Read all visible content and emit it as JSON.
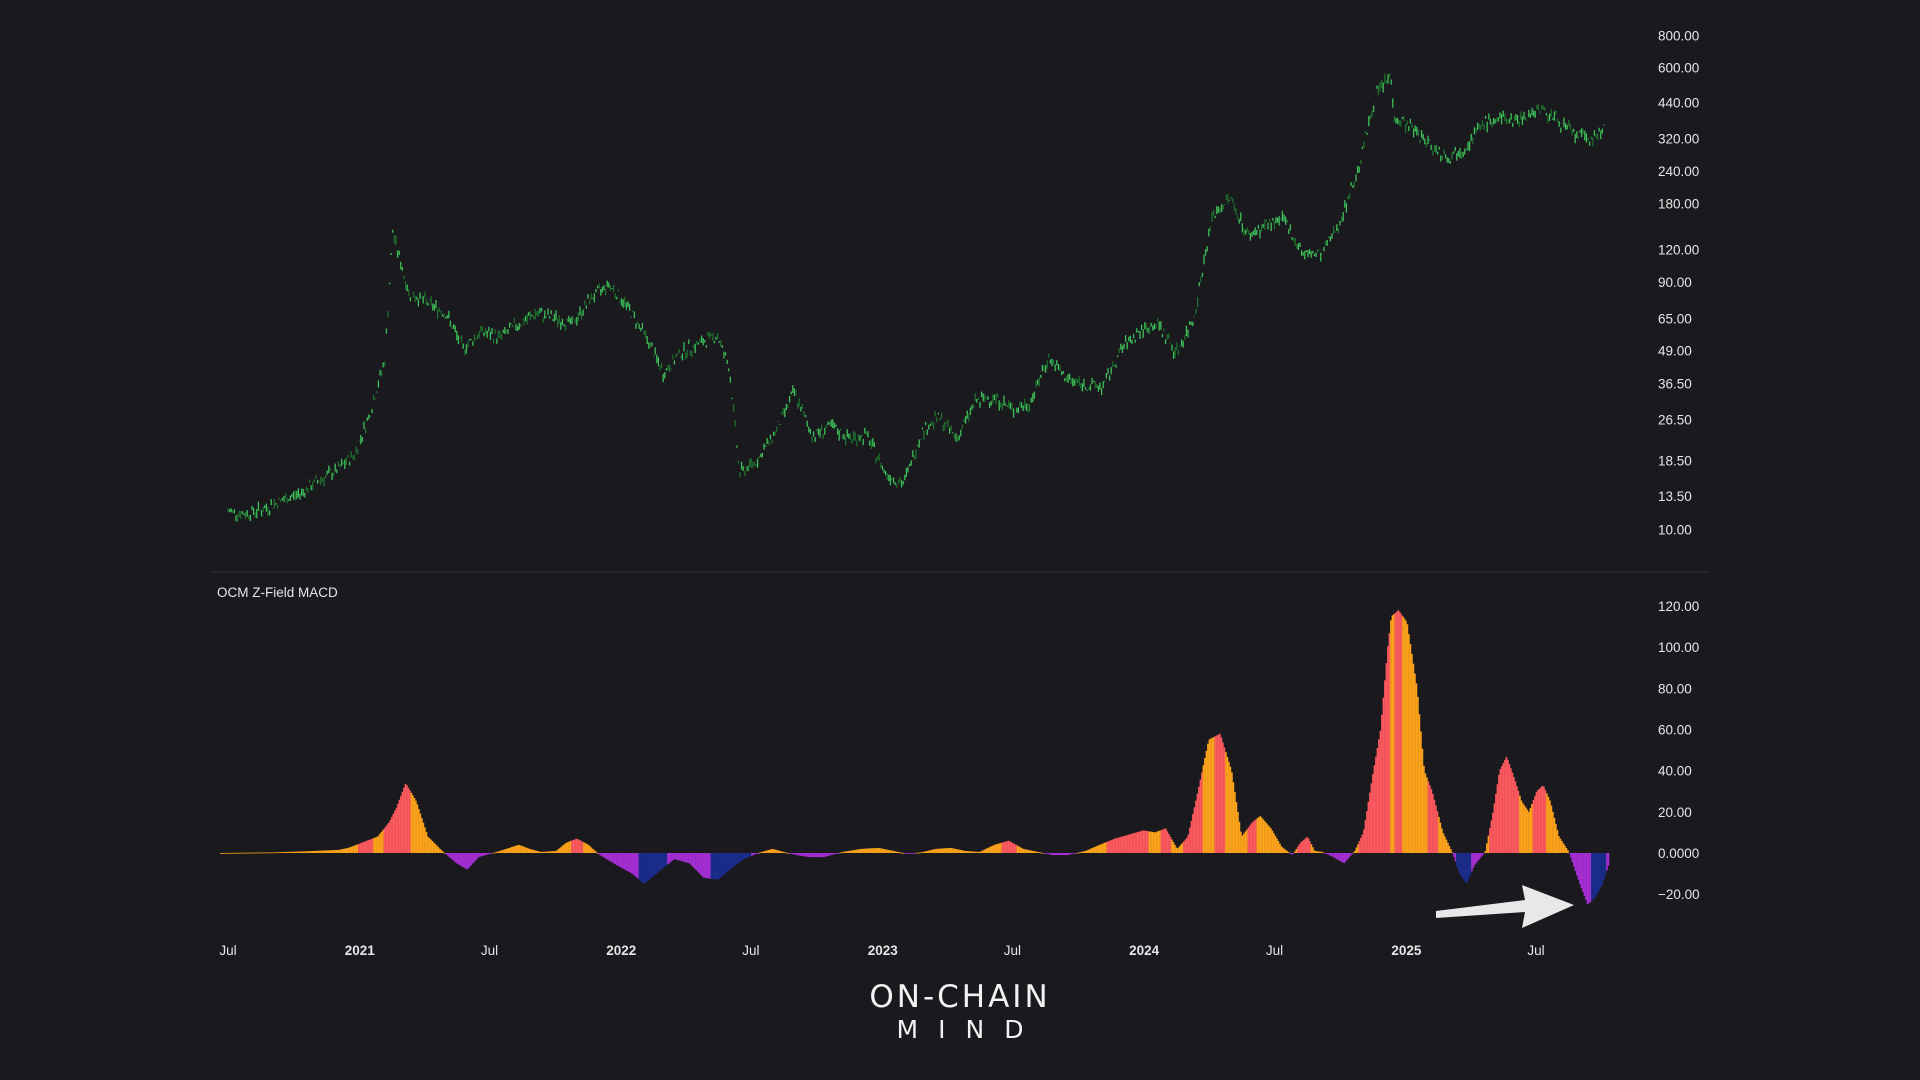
{
  "colors": {
    "background": "#19191e",
    "price_up": "#3fbf5a",
    "price_down": "#1f6e2d",
    "hist_pink": "#ff5a5f",
    "hist_orange": "#ffa51a",
    "hist_purple": "#a72fd6",
    "hist_navy": "#1a2d8c",
    "divider": "#2e2e36",
    "arrow": "#e8e8e8"
  },
  "chart_data": [
    {
      "type": "line",
      "name": "price-pane",
      "scale": "log",
      "ylim": [
        8.5,
        900
      ],
      "y_ticks": [
        "800.00",
        "600.00",
        "440.00",
        "320.00",
        "240.00",
        "180.00",
        "120.00",
        "90.00",
        "65.00",
        "49.00",
        "36.50",
        "26.50",
        "18.50",
        "13.50",
        "10.00"
      ],
      "x": [
        "2020-07-01",
        "2020-07-25",
        "2020-08-20",
        "2020-09-15",
        "2020-10-10",
        "2020-11-05",
        "2020-12-01",
        "2020-12-25",
        "2021-01-15",
        "2021-02-05",
        "2021-02-16",
        "2021-03-10",
        "2021-04-05",
        "2021-05-01",
        "2021-05-25",
        "2021-06-20",
        "2021-07-15",
        "2021-08-10",
        "2021-09-05",
        "2021-10-01",
        "2021-10-25",
        "2021-11-20",
        "2021-12-15",
        "2022-01-10",
        "2022-02-05",
        "2022-03-01",
        "2022-03-25",
        "2022-04-20",
        "2022-05-15",
        "2022-06-01",
        "2022-06-15",
        "2022-07-10",
        "2022-08-05",
        "2022-08-30",
        "2022-09-25",
        "2022-10-20",
        "2022-11-15",
        "2022-12-10",
        "2023-01-05",
        "2023-01-30",
        "2023-02-25",
        "2023-03-20",
        "2023-04-15",
        "2023-05-10",
        "2023-06-05",
        "2023-07-01",
        "2023-07-25",
        "2023-08-20",
        "2023-09-15",
        "2023-10-10",
        "2023-11-05",
        "2023-12-01",
        "2023-12-25",
        "2024-01-20",
        "2024-02-15",
        "2024-03-10",
        "2024-04-05",
        "2024-04-30",
        "2024-05-25",
        "2024-06-20",
        "2024-07-15",
        "2024-08-10",
        "2024-09-05",
        "2024-10-01",
        "2024-10-25",
        "2024-11-20",
        "2024-12-10",
        "2024-12-15",
        "2025-01-10",
        "2025-02-05",
        "2025-03-01",
        "2025-03-25",
        "2025-04-20",
        "2025-05-15",
        "2025-06-10",
        "2025-07-05",
        "2025-07-30",
        "2025-08-25",
        "2025-09-20",
        "2025-10-05"
      ],
      "values": [
        11.8,
        11.5,
        12.0,
        13.0,
        13.8,
        15.5,
        17.0,
        19.5,
        28.0,
        45.0,
        140.0,
        82.0,
        75.0,
        68.0,
        50.0,
        58.0,
        55.0,
        62.0,
        68.0,
        65.0,
        62.0,
        78.0,
        88.0,
        72.0,
        55.0,
        40.0,
        48.0,
        52.0,
        56.0,
        42.0,
        16.5,
        18.5,
        24.0,
        34.0,
        23.0,
        25.0,
        22.5,
        23.0,
        16.5,
        15.0,
        24.0,
        27.0,
        22.5,
        31.0,
        32.5,
        29.0,
        30.5,
        46.0,
        38.0,
        36.0,
        35.5,
        50.0,
        58.0,
        62.0,
        48.0,
        65.0,
        160.0,
        190.0,
        135.0,
        150.0,
        155.0,
        115.0,
        115.0,
        155.0,
        240.0,
        480.0,
        560.0,
        390.0,
        350.0,
        300.0,
        270.0,
        300.0,
        370.0,
        380.0,
        380.0,
        420.0,
        380.0,
        330.0,
        320.0,
        360.0
      ]
    },
    {
      "type": "bar",
      "name": "OCM Z-Field MACD",
      "title": "OCM Z-Field MACD",
      "ylim": [
        -27,
        123
      ],
      "y_ticks": [
        "120.00",
        "100.00",
        "80.00",
        "60.00",
        "40.00",
        "20.00",
        "0.0000",
        "−20.00"
      ],
      "x": [
        "2020-06-20",
        "2020-09-01",
        "2020-10-15",
        "2020-12-01",
        "2020-12-15",
        "2021-01-10",
        "2021-01-25",
        "2021-02-10",
        "2021-02-20",
        "2021-03-05",
        "2021-03-20",
        "2021-04-05",
        "2021-04-25",
        "2021-05-15",
        "2021-05-30",
        "2021-06-15",
        "2021-07-10",
        "2021-08-10",
        "2021-08-25",
        "2021-09-10",
        "2021-10-01",
        "2021-10-15",
        "2021-10-30",
        "2021-11-15",
        "2021-12-01",
        "2021-12-25",
        "2022-01-15",
        "2022-02-01",
        "2022-02-25",
        "2022-03-15",
        "2022-04-05",
        "2022-04-25",
        "2022-05-15",
        "2022-06-01",
        "2022-06-20",
        "2022-07-10",
        "2022-07-30",
        "2022-08-15",
        "2022-09-01",
        "2022-09-20",
        "2022-10-10",
        "2022-11-05",
        "2022-12-01",
        "2022-12-25",
        "2023-01-15",
        "2023-02-05",
        "2023-02-25",
        "2023-03-15",
        "2023-04-05",
        "2023-04-25",
        "2023-05-15",
        "2023-06-05",
        "2023-06-25",
        "2023-07-15",
        "2023-08-05",
        "2023-08-25",
        "2023-09-15",
        "2023-10-10",
        "2023-10-30",
        "2023-11-20",
        "2023-12-10",
        "2023-12-30",
        "2024-01-15",
        "2024-01-30",
        "2024-02-15",
        "2024-03-01",
        "2024-03-15",
        "2024-03-30",
        "2024-04-15",
        "2024-05-01",
        "2024-05-15",
        "2024-05-30",
        "2024-06-10",
        "2024-06-25",
        "2024-07-10",
        "2024-07-25",
        "2024-08-05",
        "2024-08-15",
        "2024-08-25",
        "2024-09-05",
        "2024-09-20",
        "2024-10-05",
        "2024-10-20",
        "2024-11-01",
        "2024-11-15",
        "2024-11-25",
        "2024-12-05",
        "2024-12-10",
        "2024-12-20",
        "2025-01-01",
        "2025-01-15",
        "2025-01-25",
        "2025-02-05",
        "2025-02-20",
        "2025-03-05",
        "2025-03-15",
        "2025-03-25",
        "2025-04-05",
        "2025-04-20",
        "2025-05-01",
        "2025-05-10",
        "2025-05-20",
        "2025-06-01",
        "2025-06-10",
        "2025-06-20",
        "2025-07-01",
        "2025-07-10",
        "2025-07-20",
        "2025-08-01",
        "2025-08-15",
        "2025-08-30",
        "2025-09-10",
        "2025-09-20",
        "2025-10-01",
        "2025-10-10"
      ],
      "values": [
        0,
        0.3,
        0.8,
        1.5,
        2.5,
        6,
        8,
        15,
        22,
        34,
        25,
        8,
        1,
        -5,
        -8,
        -2,
        0.5,
        4,
        2,
        0.5,
        1,
        5,
        7,
        4,
        -1,
        -6,
        -10,
        -15,
        -8,
        -3,
        -5,
        -12,
        -13,
        -8,
        -3,
        0,
        2,
        0.5,
        -1,
        -2,
        -2,
        0.5,
        2,
        2.5,
        1,
        -0.5,
        0.5,
        2,
        2.5,
        1,
        0.5,
        4,
        6,
        2,
        0.5,
        -1,
        -1,
        1,
        4,
        7,
        9,
        11,
        10,
        12,
        2,
        8,
        30,
        55,
        58,
        40,
        8,
        15,
        18,
        12,
        3,
        -1,
        5,
        8,
        1,
        0.5,
        -2,
        -5,
        1,
        10,
        40,
        60,
        100,
        115,
        118,
        112,
        80,
        40,
        30,
        10,
        0.5,
        -10,
        -15,
        -6,
        0.5,
        20,
        40,
        47,
        35,
        25,
        20,
        30,
        33,
        25,
        8,
        0.5,
        -15,
        -25,
        -22,
        -15,
        -5
      ],
      "colors": [
        "orange",
        "orange",
        "orange",
        "orange",
        "orange",
        "pink",
        "orange",
        "pink",
        "pink",
        "pink",
        "orange",
        "orange",
        "orange",
        "purple",
        "purple",
        "purple",
        "orange",
        "orange",
        "orange",
        "orange",
        "orange",
        "orange",
        "pink",
        "orange",
        "purple",
        "purple",
        "purple",
        "navy",
        "navy",
        "purple",
        "purple",
        "purple",
        "navy",
        "navy",
        "navy",
        "orange",
        "orange",
        "orange",
        "purple",
        "purple",
        "purple",
        "orange",
        "orange",
        "orange",
        "orange",
        "purple",
        "orange",
        "orange",
        "orange",
        "orange",
        "orange",
        "orange",
        "pink",
        "orange",
        "orange",
        "purple",
        "purple",
        "orange",
        "orange",
        "pink",
        "pink",
        "pink",
        "orange",
        "pink",
        "purple",
        "pink",
        "pink",
        "orange",
        "pink",
        "orange",
        "orange",
        "pink",
        "orange",
        "orange",
        "orange",
        "purple",
        "pink",
        "pink",
        "orange",
        "orange",
        "purple",
        "purple",
        "orange",
        "pink",
        "pink",
        "pink",
        "pink",
        "orange",
        "pink",
        "orange",
        "orange",
        "orange",
        "pink",
        "orange",
        "orange",
        "navy",
        "navy",
        "purple",
        "orange",
        "pink",
        "pink",
        "pink",
        "pink",
        "orange",
        "orange",
        "pink",
        "pink",
        "orange",
        "orange",
        "orange",
        "purple",
        "purple",
        "navy",
        "navy",
        "purple"
      ]
    }
  ],
  "x_axis": {
    "labels": [
      {
        "text": "Jul",
        "date": "2020-07-01",
        "major": false
      },
      {
        "text": "2021",
        "date": "2021-01-01",
        "major": true
      },
      {
        "text": "Jul",
        "date": "2021-07-01",
        "major": false
      },
      {
        "text": "2022",
        "date": "2022-01-01",
        "major": true
      },
      {
        "text": "Jul",
        "date": "2022-07-01",
        "major": false
      },
      {
        "text": "2023",
        "date": "2023-01-01",
        "major": true
      },
      {
        "text": "Jul",
        "date": "2023-07-01",
        "major": false
      },
      {
        "text": "2024",
        "date": "2024-01-01",
        "major": true
      },
      {
        "text": "Jul",
        "date": "2024-07-01",
        "major": false
      },
      {
        "text": "2025",
        "date": "2025-01-01",
        "major": true
      },
      {
        "text": "Jul",
        "date": "2025-07-01",
        "major": false
      }
    ]
  },
  "logo": {
    "line1": "ON-CHAIN",
    "line2": "MIND"
  },
  "annotation": {
    "icon": "arrow-right-icon"
  }
}
